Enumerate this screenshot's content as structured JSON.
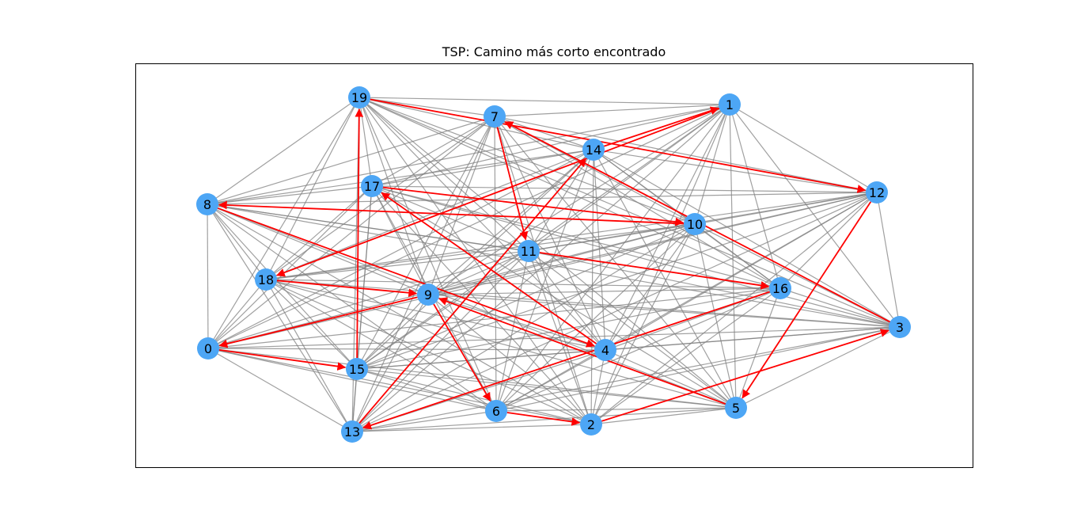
{
  "title": "TSP: Camino más corto encontrado",
  "colors": {
    "node": "#4da6f5",
    "edge": "#808080",
    "path": "#ff0000",
    "frame": "#000000",
    "background": "#ffffff"
  },
  "nodes": [
    {
      "id": "0",
      "label": "0"
    },
    {
      "id": "1",
      "label": "1"
    },
    {
      "id": "2",
      "label": "2"
    },
    {
      "id": "3",
      "label": "3"
    },
    {
      "id": "4",
      "label": "4"
    },
    {
      "id": "5",
      "label": "5"
    },
    {
      "id": "6",
      "label": "6"
    },
    {
      "id": "7",
      "label": "7"
    },
    {
      "id": "8",
      "label": "8"
    },
    {
      "id": "9",
      "label": "9"
    },
    {
      "id": "10",
      "label": "10"
    },
    {
      "id": "11",
      "label": "11"
    },
    {
      "id": "12",
      "label": "12"
    },
    {
      "id": "13",
      "label": "13"
    },
    {
      "id": "14",
      "label": "14"
    },
    {
      "id": "15",
      "label": "15"
    },
    {
      "id": "16",
      "label": "16"
    },
    {
      "id": "17",
      "label": "17"
    },
    {
      "id": "18",
      "label": "18"
    },
    {
      "id": "19",
      "label": "19"
    }
  ],
  "edges": "complete",
  "path": [
    [
      "13",
      "14"
    ],
    [
      "14",
      "1"
    ],
    [
      "1",
      "18"
    ],
    [
      "18",
      "9"
    ],
    [
      "9",
      "0"
    ],
    [
      "0",
      "15"
    ],
    [
      "15",
      "19"
    ],
    [
      "19",
      "12"
    ],
    [
      "12",
      "5"
    ],
    [
      "5",
      "9"
    ],
    [
      "9",
      "6"
    ],
    [
      "6",
      "2"
    ],
    [
      "2",
      "3"
    ],
    [
      "3",
      "7"
    ],
    [
      "7",
      "11"
    ],
    [
      "11",
      "16"
    ],
    [
      "16",
      "13"
    ],
    [
      "10",
      "8"
    ],
    [
      "8",
      "4"
    ],
    [
      "4",
      "17"
    ],
    [
      "17",
      "10"
    ]
  ]
}
